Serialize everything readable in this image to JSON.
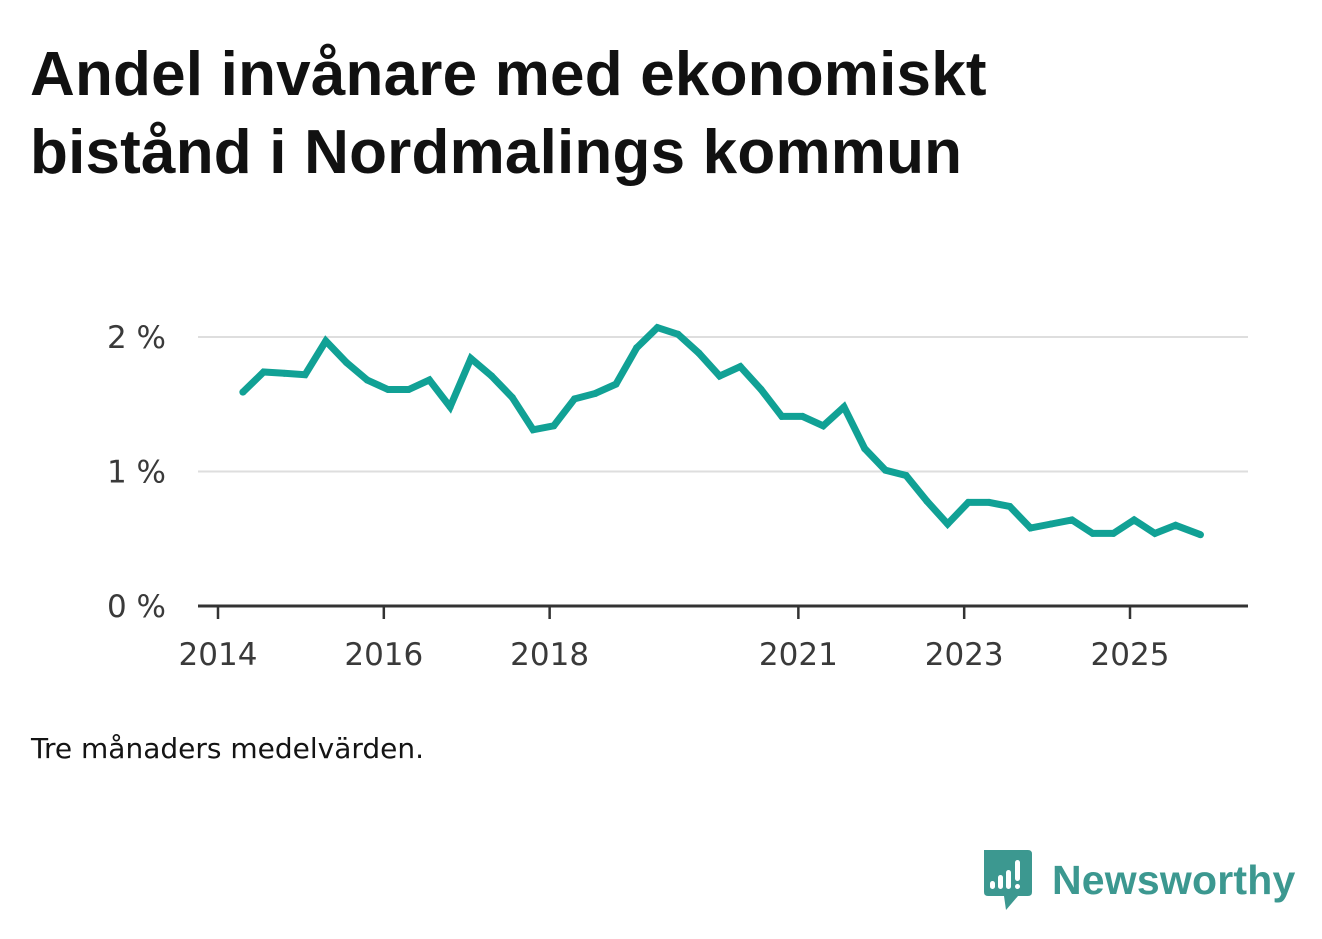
{
  "title": "Andel invånare med ekonomiskt bistånd i Nordmalings kommun",
  "note": "Tre månaders medelvärden.",
  "brand": {
    "name": "Newsworthy",
    "icon": "newsworthy-logo-icon",
    "color": "#3c9890"
  },
  "colors": {
    "line": "#11a195",
    "grid": "#dedede",
    "axis": "#333333"
  },
  "chart_data": {
    "type": "line",
    "title": "Andel invånare med ekonomiskt bistånd i Nordmalings kommun",
    "xlabel": "",
    "ylabel": "",
    "ylim": [
      0,
      2.2
    ],
    "xlim": [
      2013.8,
      2026.6
    ],
    "grid": true,
    "legend": "none",
    "y_ticks": [
      {
        "value": 0,
        "label": "0 %"
      },
      {
        "value": 1,
        "label": "1 %"
      },
      {
        "value": 2,
        "label": "2 %"
      }
    ],
    "x_ticks": [
      {
        "value": 2014,
        "label": "2014"
      },
      {
        "value": 2016,
        "label": "2016"
      },
      {
        "value": 2018,
        "label": "2018"
      },
      {
        "value": 2021,
        "label": "2021"
      },
      {
        "value": 2023,
        "label": "2023"
      },
      {
        "value": 2025,
        "label": "2025"
      }
    ],
    "series": [
      {
        "name": "Andel invånare med ekonomiskt bistånd",
        "unit": "%",
        "x": [
          2014.3,
          2014.55,
          2014.8,
          2015.05,
          2015.3,
          2015.55,
          2015.8,
          2016.05,
          2016.3,
          2016.55,
          2016.8,
          2017.05,
          2017.3,
          2017.55,
          2017.8,
          2018.05,
          2018.3,
          2018.55,
          2018.8,
          2019.05,
          2019.3,
          2019.55,
          2019.8,
          2020.05,
          2020.3,
          2020.55,
          2020.8,
          2021.05,
          2021.3,
          2021.55,
          2021.8,
          2022.05,
          2022.3,
          2022.55,
          2022.8,
          2023.05,
          2023.3,
          2023.55,
          2023.8,
          2024.05,
          2024.3,
          2024.55,
          2024.8,
          2025.05,
          2025.3,
          2025.55,
          2025.85
        ],
        "values": [
          1.59,
          1.74,
          1.73,
          1.72,
          1.97,
          1.81,
          1.68,
          1.61,
          1.61,
          1.68,
          1.48,
          1.84,
          1.71,
          1.55,
          1.31,
          1.34,
          1.54,
          1.58,
          1.65,
          1.92,
          2.07,
          2.02,
          1.88,
          1.71,
          1.78,
          1.61,
          1.41,
          1.41,
          1.34,
          1.48,
          1.17,
          1.01,
          0.97,
          0.78,
          0.61,
          0.77,
          0.77,
          0.74,
          0.58,
          0.61,
          0.64,
          0.54,
          0.54,
          0.64,
          0.54,
          0.6,
          0.53
        ]
      }
    ]
  }
}
